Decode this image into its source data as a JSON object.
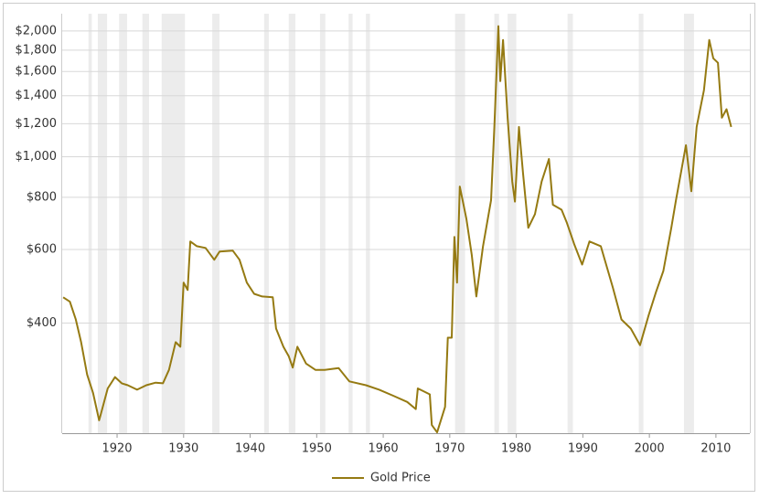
{
  "chart_data": {
    "type": "line",
    "x": [
      1911.9,
      1912.9,
      1913.8,
      1914.6,
      1915.5,
      1916.4,
      1917.3,
      1917.5,
      1918.6,
      1919.7,
      1920.7,
      1921.6,
      1923.0,
      1924.4,
      1925.8,
      1926.9,
      1927.8,
      1928.8,
      1929.5,
      1930.0,
      1930.6,
      1931.0,
      1932.0,
      1933.3,
      1934.6,
      1935.4,
      1937.4,
      1938.4,
      1939.5,
      1940.6,
      1941.8,
      1943.4,
      1943.9,
      1945.0,
      1945.8,
      1946.4,
      1947.1,
      1948.4,
      1949.8,
      1951.2,
      1953.3,
      1954.9,
      1957.4,
      1959.4,
      1961.5,
      1963.6,
      1964.9,
      1965.2,
      1967.0,
      1967.3,
      1968.1,
      1969.3,
      1969.7,
      1970.3,
      1970.7,
      1971.1,
      1971.5,
      1972.5,
      1973.3,
      1974.0,
      1975.0,
      1976.2,
      1976.7,
      1977.3,
      1977.6,
      1978.0,
      1978.7,
      1979.4,
      1979.8,
      1980.4,
      1981.0,
      1981.8,
      1982.8,
      1983.8,
      1984.9,
      1985.5,
      1986.8,
      1987.6,
      1988.7,
      1989.9,
      1991.0,
      1992.7,
      1994.5,
      1995.8,
      1997.2,
      1998.6,
      1999.9,
      2001.0,
      2002.1,
      2003.3,
      2004.0,
      2005.5,
      2006.3,
      2007.1,
      2008.2,
      2009.0,
      2009.6,
      2010.3,
      2010.9,
      2011.6,
      2012.3
    ],
    "series": [
      {
        "name": "Gold Price",
        "color": "#957a12",
        "values": [
          461,
          450,
          408,
          360,
          301,
          272,
          234,
          240,
          279,
          297,
          287,
          284,
          277,
          284,
          288,
          287,
          309,
          360,
          351,
          500,
          480,
          627,
          611,
          605,
          567,
          593,
          596,
          567,
          500,
          470,
          463,
          461,
          388,
          351,
          333,
          313,
          351,
          320,
          309,
          309,
          312,
          290,
          284,
          277,
          268,
          259,
          249,
          279,
          270,
          228,
          219,
          252,
          369,
          369,
          643,
          500,
          849,
          711,
          582,
          463,
          611,
          787,
          1179,
          2054,
          1517,
          1904,
          1240,
          872,
          781,
          1179,
          916,
          676,
          729,
          872,
          988,
          768,
          747,
          695,
          618,
          552,
          627,
          611,
          487,
          408,
          388,
          354,
          418,
          475,
          533,
          676,
          787,
          1066,
          827,
          1179,
          1443,
          1904,
          1721,
          1679,
          1240,
          1300,
          1179
        ]
      }
    ],
    "shaded_periods": [
      [
        1915.7,
        1916.2
      ],
      [
        1917.1,
        1918.5
      ],
      [
        1920.3,
        1921.5
      ],
      [
        1923.8,
        1924.8
      ],
      [
        1926.7,
        1930.2
      ],
      [
        1934.3,
        1935.4
      ],
      [
        1942.1,
        1942.8
      ],
      [
        1945.8,
        1946.8
      ],
      [
        1950.5,
        1951.3
      ],
      [
        1954.8,
        1955.4
      ],
      [
        1957.4,
        1958.0
      ],
      [
        1970.8,
        1972.3
      ],
      [
        1976.7,
        1977.4
      ],
      [
        1978.7,
        1980.0
      ],
      [
        1987.7,
        1988.5
      ],
      [
        1998.4,
        1999.1
      ],
      [
        2005.2,
        2006.7
      ]
    ],
    "shade_color": "#ececec",
    "xlim": [
      1911.75,
      2015.1
    ],
    "xticks": [
      1920,
      1930,
      1940,
      1950,
      1960,
      1970,
      1980,
      1990,
      2000,
      2010
    ],
    "ylim": [
      218,
      2200
    ],
    "log_scale": true,
    "yticks": [
      {
        "value": 400,
        "label": "$400"
      },
      {
        "value": 600,
        "label": "$600"
      },
      {
        "value": 800,
        "label": "$800"
      },
      {
        "value": 1000,
        "label": "$1,000"
      },
      {
        "value": 1200,
        "label": "$1,200"
      },
      {
        "value": 1400,
        "label": "$1,400"
      },
      {
        "value": 1600,
        "label": "$1,600"
      },
      {
        "value": 1800,
        "label": "$1,800"
      },
      {
        "value": 2000,
        "label": "$2,000"
      }
    ],
    "grid": true,
    "legend": "bottom"
  }
}
